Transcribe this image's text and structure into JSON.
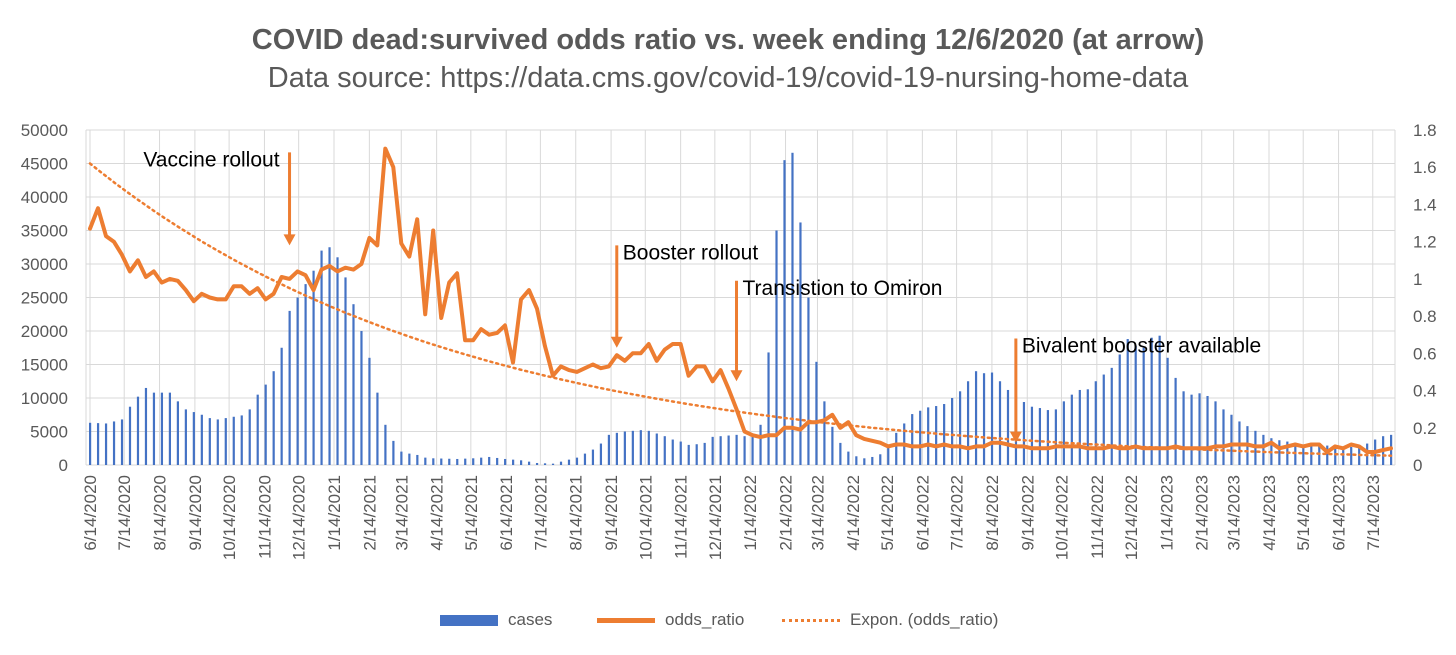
{
  "chart_data": {
    "type": "bar+line",
    "title": "COVID dead:survived odds ratio vs. week ending 12/6/2020 (at arrow)",
    "subtitle": "Data source: https://data.cms.gov/covid-19/covid-19-nursing-home-data",
    "ylim_left": [
      0,
      50000
    ],
    "yticks_left": [
      "0",
      "5000",
      "10000",
      "15000",
      "20000",
      "25000",
      "30000",
      "35000",
      "40000",
      "45000",
      "50000"
    ],
    "ylim_right": [
      0,
      1.8
    ],
    "yticks_right": [
      "0",
      "0.2",
      "0.4",
      "0.6",
      "0.8",
      "1",
      "1.2",
      "1.4",
      "1.6",
      "1.8"
    ],
    "x_start": "6/14/2020",
    "weeks_count": 164,
    "xtick_labels": [
      "6/14/2020",
      "7/14/2020",
      "8/14/2020",
      "9/14/2020",
      "10/14/2020",
      "11/14/2020",
      "12/14/2020",
      "1/14/2021",
      "2/14/2021",
      "3/14/2021",
      "4/14/2021",
      "5/14/2021",
      "6/14/2021",
      "7/14/2021",
      "8/14/2021",
      "9/14/2021",
      "10/14/2021",
      "11/14/2021",
      "12/14/2021",
      "1/14/2022",
      "2/14/2022",
      "3/14/2022",
      "4/14/2022",
      "5/14/2022",
      "6/14/2022",
      "7/14/2022",
      "8/14/2022",
      "9/14/2022",
      "10/14/2022",
      "11/14/2022",
      "12/14/2022",
      "1/14/2023",
      "2/14/2023",
      "3/14/2023",
      "4/14/2023",
      "5/14/2023",
      "6/14/2023",
      "7/14/2023"
    ],
    "cases_anchors": [
      [
        0,
        6300
      ],
      [
        2,
        6200
      ],
      [
        3,
        6500
      ],
      [
        4,
        6800
      ],
      [
        5,
        8700
      ],
      [
        6,
        10200
      ],
      [
        7,
        11500
      ],
      [
        8,
        10800
      ],
      [
        9,
        10800
      ],
      [
        10,
        10800
      ],
      [
        11,
        9500
      ],
      [
        12,
        8300
      ],
      [
        13,
        7900
      ],
      [
        14,
        7500
      ],
      [
        15,
        7000
      ],
      [
        16,
        6800
      ],
      [
        17,
        7000
      ],
      [
        18,
        7200
      ],
      [
        19,
        7400
      ],
      [
        20,
        8300
      ],
      [
        21,
        10500
      ],
      [
        22,
        12000
      ],
      [
        23,
        14000
      ],
      [
        24,
        17500
      ],
      [
        25,
        23000
      ],
      [
        26,
        25000
      ],
      [
        27,
        27000
      ],
      [
        28,
        29000
      ],
      [
        29,
        32000
      ],
      [
        30,
        32500
      ],
      [
        31,
        31000
      ],
      [
        32,
        28000
      ],
      [
        33,
        24000
      ],
      [
        34,
        20000
      ],
      [
        35,
        16000
      ],
      [
        36,
        10800
      ],
      [
        37,
        6000
      ],
      [
        38,
        3600
      ],
      [
        39,
        2000
      ],
      [
        40,
        1700
      ],
      [
        41,
        1500
      ],
      [
        42,
        1100
      ],
      [
        43,
        1000
      ],
      [
        46,
        900
      ],
      [
        48,
        1000
      ],
      [
        50,
        1200
      ],
      [
        52,
        900
      ],
      [
        54,
        700
      ],
      [
        56,
        300
      ],
      [
        58,
        200
      ],
      [
        59,
        500
      ],
      [
        60,
        800
      ],
      [
        61,
        1100
      ],
      [
        62,
        1700
      ],
      [
        63,
        2300
      ],
      [
        64,
        3200
      ],
      [
        65,
        4500
      ],
      [
        66,
        4800
      ],
      [
        67,
        5000
      ],
      [
        68,
        5100
      ],
      [
        69,
        5200
      ],
      [
        70,
        5100
      ],
      [
        71,
        4700
      ],
      [
        72,
        4300
      ],
      [
        73,
        3800
      ],
      [
        74,
        3500
      ],
      [
        75,
        3000
      ],
      [
        76,
        3100
      ],
      [
        77,
        3300
      ],
      [
        78,
        4200
      ],
      [
        79,
        4300
      ],
      [
        80,
        4400
      ],
      [
        81,
        4500
      ],
      [
        82,
        4300
      ],
      [
        83,
        4200
      ],
      [
        84,
        6000
      ],
      [
        85,
        16800
      ],
      [
        86,
        35000
      ],
      [
        87,
        45500
      ],
      [
        88,
        46600
      ],
      [
        89,
        36200
      ],
      [
        90,
        25000
      ],
      [
        91,
        15400
      ],
      [
        92,
        9500
      ],
      [
        93,
        5700
      ],
      [
        94,
        3300
      ],
      [
        95,
        2000
      ],
      [
        96,
        1300
      ],
      [
        97,
        1000
      ],
      [
        98,
        1200
      ],
      [
        99,
        1600
      ],
      [
        100,
        3000
      ],
      [
        101,
        4800
      ],
      [
        102,
        6200
      ],
      [
        103,
        7600
      ],
      [
        104,
        8100
      ],
      [
        105,
        8600
      ],
      [
        106,
        8800
      ],
      [
        107,
        9100
      ],
      [
        108,
        10000
      ],
      [
        109,
        11000
      ],
      [
        110,
        12500
      ],
      [
        111,
        14000
      ],
      [
        112,
        13700
      ],
      [
        113,
        13800
      ],
      [
        114,
        12500
      ],
      [
        115,
        11200
      ],
      [
        116,
        10300
      ],
      [
        117,
        9400
      ],
      [
        118,
        8700
      ],
      [
        119,
        8500
      ],
      [
        120,
        8200
      ],
      [
        121,
        8300
      ],
      [
        122,
        9500
      ],
      [
        123,
        10500
      ],
      [
        124,
        11200
      ],
      [
        125,
        11300
      ],
      [
        126,
        12500
      ],
      [
        127,
        13500
      ],
      [
        128,
        14500
      ],
      [
        129,
        16500
      ],
      [
        130,
        18800
      ],
      [
        131,
        17800
      ],
      [
        132,
        17500
      ],
      [
        133,
        19000
      ],
      [
        134,
        19300
      ],
      [
        135,
        16000
      ],
      [
        136,
        13000
      ],
      [
        137,
        11000
      ],
      [
        138,
        10500
      ],
      [
        139,
        10700
      ],
      [
        140,
        10300
      ],
      [
        141,
        9500
      ],
      [
        142,
        8300
      ],
      [
        143,
        7500
      ],
      [
        144,
        6500
      ],
      [
        145,
        5800
      ],
      [
        146,
        5100
      ],
      [
        147,
        4500
      ],
      [
        148,
        4000
      ],
      [
        149,
        3700
      ],
      [
        150,
        3500
      ],
      [
        151,
        3300
      ],
      [
        152,
        3000
      ],
      [
        153,
        3000
      ],
      [
        154,
        3000
      ],
      [
        155,
        2900
      ],
      [
        156,
        2600
      ],
      [
        157,
        2500
      ],
      [
        158,
        2700
      ],
      [
        159,
        3000
      ],
      [
        160,
        3200
      ],
      [
        161,
        3800
      ],
      [
        162,
        4300
      ],
      [
        163,
        4500
      ]
    ],
    "odds_ratio_anchors": [
      [
        0,
        1.27
      ],
      [
        1,
        1.38
      ],
      [
        2,
        1.23
      ],
      [
        3,
        1.2
      ],
      [
        4,
        1.13
      ],
      [
        5,
        1.04
      ],
      [
        6,
        1.1
      ],
      [
        7,
        1.01
      ],
      [
        8,
        1.04
      ],
      [
        9,
        0.98
      ],
      [
        10,
        1.0
      ],
      [
        11,
        0.99
      ],
      [
        12,
        0.94
      ],
      [
        13,
        0.88
      ],
      [
        14,
        0.92
      ],
      [
        15,
        0.9
      ],
      [
        16,
        0.89
      ],
      [
        17,
        0.89
      ],
      [
        18,
        0.96
      ],
      [
        19,
        0.96
      ],
      [
        20,
        0.92
      ],
      [
        21,
        0.95
      ],
      [
        22,
        0.89
      ],
      [
        23,
        0.92
      ],
      [
        24,
        1.01
      ],
      [
        25,
        1.0
      ],
      [
        26,
        1.04
      ],
      [
        27,
        1.02
      ],
      [
        28,
        0.94
      ],
      [
        29,
        1.05
      ],
      [
        30,
        1.07
      ],
      [
        31,
        1.04
      ],
      [
        32,
        1.06
      ],
      [
        33,
        1.05
      ],
      [
        34,
        1.08
      ],
      [
        35,
        1.22
      ],
      [
        36,
        1.18
      ],
      [
        37,
        1.7
      ],
      [
        38,
        1.6
      ],
      [
        39,
        1.19
      ],
      [
        40,
        1.12
      ],
      [
        41,
        1.32
      ],
      [
        42,
        0.81
      ],
      [
        43,
        1.26
      ],
      [
        44,
        0.79
      ],
      [
        45,
        0.98
      ],
      [
        46,
        1.03
      ],
      [
        47,
        0.67
      ],
      [
        48,
        0.67
      ],
      [
        49,
        0.73
      ],
      [
        50,
        0.7
      ],
      [
        51,
        0.71
      ],
      [
        52,
        0.75
      ],
      [
        53,
        0.55
      ],
      [
        54,
        0.89
      ],
      [
        55,
        0.94
      ],
      [
        56,
        0.84
      ],
      [
        57,
        0.64
      ],
      [
        58,
        0.48
      ],
      [
        59,
        0.53
      ],
      [
        60,
        0.51
      ],
      [
        61,
        0.5
      ],
      [
        62,
        0.52
      ],
      [
        63,
        0.54
      ],
      [
        64,
        0.52
      ],
      [
        65,
        0.53
      ],
      [
        66,
        0.59
      ],
      [
        67,
        0.56
      ],
      [
        68,
        0.6
      ],
      [
        69,
        0.6
      ],
      [
        70,
        0.65
      ],
      [
        71,
        0.56
      ],
      [
        72,
        0.62
      ],
      [
        73,
        0.65
      ],
      [
        74,
        0.65
      ],
      [
        75,
        0.48
      ],
      [
        76,
        0.53
      ],
      [
        77,
        0.53
      ],
      [
        78,
        0.45
      ],
      [
        79,
        0.51
      ],
      [
        80,
        0.41
      ],
      [
        81,
        0.3
      ],
      [
        82,
        0.18
      ],
      [
        83,
        0.16
      ],
      [
        84,
        0.15
      ],
      [
        85,
        0.16
      ],
      [
        86,
        0.16
      ],
      [
        87,
        0.2
      ],
      [
        88,
        0.2
      ],
      [
        89,
        0.19
      ],
      [
        90,
        0.23
      ],
      [
        91,
        0.23
      ],
      [
        92,
        0.24
      ],
      [
        93,
        0.27
      ],
      [
        94,
        0.2
      ],
      [
        95,
        0.23
      ],
      [
        96,
        0.16
      ],
      [
        97,
        0.14
      ],
      [
        98,
        0.13
      ],
      [
        99,
        0.12
      ],
      [
        100,
        0.1
      ],
      [
        101,
        0.11
      ],
      [
        102,
        0.11
      ],
      [
        103,
        0.1
      ],
      [
        104,
        0.1
      ],
      [
        105,
        0.11
      ],
      [
        106,
        0.1
      ],
      [
        107,
        0.11
      ],
      [
        108,
        0.1
      ],
      [
        109,
        0.1
      ],
      [
        110,
        0.09
      ],
      [
        111,
        0.1
      ],
      [
        112,
        0.1
      ],
      [
        113,
        0.12
      ],
      [
        114,
        0.12
      ],
      [
        115,
        0.11
      ],
      [
        116,
        0.1
      ],
      [
        117,
        0.1
      ],
      [
        118,
        0.09
      ],
      [
        119,
        0.09
      ],
      [
        120,
        0.09
      ],
      [
        121,
        0.1
      ],
      [
        122,
        0.1
      ],
      [
        123,
        0.1
      ],
      [
        124,
        0.1
      ],
      [
        125,
        0.09
      ],
      [
        126,
        0.09
      ],
      [
        127,
        0.09
      ],
      [
        128,
        0.1
      ],
      [
        129,
        0.09
      ],
      [
        130,
        0.09
      ],
      [
        131,
        0.1
      ],
      [
        132,
        0.09
      ],
      [
        133,
        0.09
      ],
      [
        134,
        0.09
      ],
      [
        135,
        0.09
      ],
      [
        136,
        0.1
      ],
      [
        137,
        0.09
      ],
      [
        138,
        0.09
      ],
      [
        139,
        0.09
      ],
      [
        140,
        0.09
      ],
      [
        141,
        0.1
      ],
      [
        142,
        0.1
      ],
      [
        143,
        0.11
      ],
      [
        144,
        0.11
      ],
      [
        145,
        0.11
      ],
      [
        146,
        0.1
      ],
      [
        147,
        0.1
      ],
      [
        148,
        0.12
      ],
      [
        149,
        0.09
      ],
      [
        150,
        0.1
      ],
      [
        151,
        0.11
      ],
      [
        152,
        0.1
      ],
      [
        153,
        0.11
      ],
      [
        154,
        0.11
      ],
      [
        155,
        0.07
      ],
      [
        156,
        0.1
      ],
      [
        157,
        0.09
      ],
      [
        158,
        0.11
      ],
      [
        159,
        0.1
      ],
      [
        160,
        0.07
      ],
      [
        161,
        0.07
      ],
      [
        162,
        0.08
      ],
      [
        163,
        0.09
      ]
    ],
    "trend": {
      "type": "exponential",
      "start": 1.62,
      "end": 0.05
    },
    "legend": [
      "cases",
      "odds_ratio",
      "Expon. (odds_ratio)"
    ],
    "legend_position": "bottom",
    "grid": true,
    "colors": {
      "bars": "#4472c4",
      "line": "#ed7d31",
      "grid": "#d9d9d9",
      "text": "#595959"
    },
    "annotations": [
      {
        "text": "Vaccine rollout",
        "week": 25,
        "level": 1.18,
        "tail": 1.68,
        "label_align": "left"
      },
      {
        "text": "Booster rollout",
        "week": 66,
        "level": 0.63,
        "tail": 1.18,
        "label_align": "right"
      },
      {
        "text": "Transistion to Omiron",
        "week": 81,
        "level": 0.45,
        "tail": 0.99,
        "label_align": "right"
      },
      {
        "text": "Bivalent booster available",
        "week": 116,
        "level": 0.12,
        "tail": 0.68,
        "label_align": "right"
      }
    ]
  }
}
